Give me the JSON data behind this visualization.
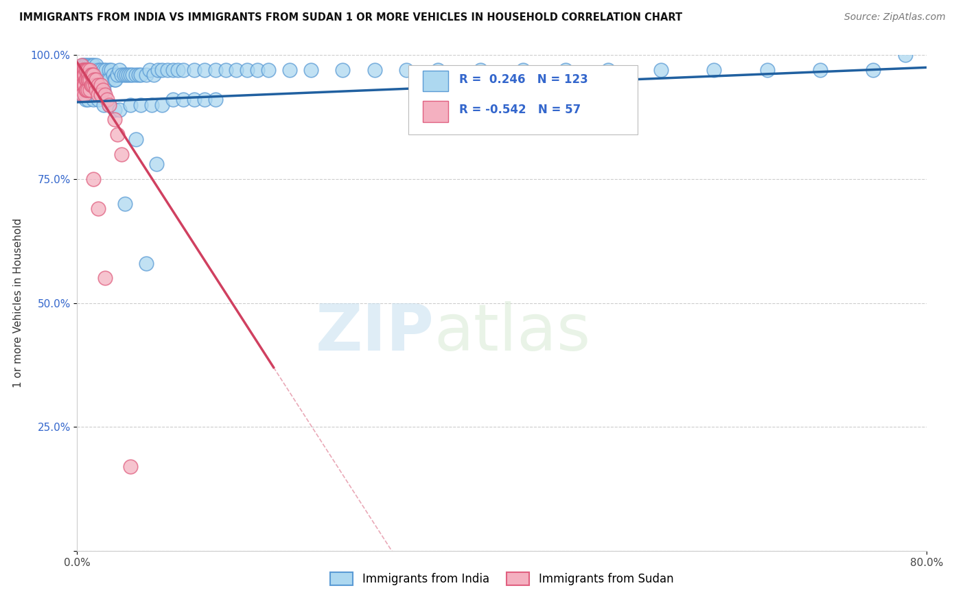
{
  "title": "IMMIGRANTS FROM INDIA VS IMMIGRANTS FROM SUDAN 1 OR MORE VEHICLES IN HOUSEHOLD CORRELATION CHART",
  "source": "Source: ZipAtlas.com",
  "ylabel": "1 or more Vehicles in Household",
  "xlim": [
    0.0,
    0.8
  ],
  "ylim": [
    0.0,
    1.0
  ],
  "india_color": "#add8f0",
  "india_edge_color": "#5b9bd5",
  "sudan_color": "#f4b0c0",
  "sudan_edge_color": "#e06080",
  "india_trend_color": "#2060a0",
  "sudan_trend_color": "#d04060",
  "india_R": 0.246,
  "india_N": 123,
  "sudan_R": -0.542,
  "sudan_N": 57,
  "legend_india": "Immigrants from India",
  "legend_sudan": "Immigrants from Sudan",
  "watermark_zip": "ZIP",
  "watermark_atlas": "atlas",
  "india_trend_x0": 0.0,
  "india_trend_x1": 0.8,
  "india_trend_y0": 0.905,
  "india_trend_y1": 0.975,
  "sudan_trend_solid_x0": 0.0,
  "sudan_trend_solid_x1": 0.185,
  "sudan_trend_y0": 0.985,
  "sudan_trend_y1": 0.37,
  "sudan_trend_dash_x0": 0.185,
  "sudan_trend_dash_x1": 0.8,
  "india_scatter_x": [
    0.003,
    0.004,
    0.004,
    0.004,
    0.005,
    0.005,
    0.005,
    0.005,
    0.006,
    0.006,
    0.006,
    0.007,
    0.007,
    0.007,
    0.007,
    0.008,
    0.008,
    0.008,
    0.008,
    0.009,
    0.009,
    0.009,
    0.01,
    0.01,
    0.01,
    0.01,
    0.01,
    0.012,
    0.012,
    0.012,
    0.012,
    0.013,
    0.013,
    0.014,
    0.014,
    0.015,
    0.015,
    0.015,
    0.016,
    0.016,
    0.018,
    0.018,
    0.018,
    0.02,
    0.02,
    0.02,
    0.022,
    0.022,
    0.022,
    0.025,
    0.025,
    0.025,
    0.027,
    0.028,
    0.03,
    0.03,
    0.032,
    0.034,
    0.035,
    0.036,
    0.038,
    0.04,
    0.042,
    0.044,
    0.046,
    0.048,
    0.05,
    0.052,
    0.055,
    0.058,
    0.06,
    0.065,
    0.068,
    0.072,
    0.076,
    0.08,
    0.085,
    0.09,
    0.095,
    0.1,
    0.11,
    0.12,
    0.13,
    0.14,
    0.15,
    0.16,
    0.17,
    0.18,
    0.2,
    0.22,
    0.25,
    0.28,
    0.31,
    0.34,
    0.38,
    0.42,
    0.46,
    0.5,
    0.55,
    0.6,
    0.65,
    0.7,
    0.75,
    0.78,
    0.015,
    0.02,
    0.025,
    0.03,
    0.035,
    0.04,
    0.05,
    0.06,
    0.07,
    0.08,
    0.09,
    0.1,
    0.11,
    0.12,
    0.13,
    0.045,
    0.055,
    0.065,
    0.075
  ],
  "india_scatter_y": [
    0.97,
    0.96,
    0.94,
    0.92,
    0.98,
    0.96,
    0.94,
    0.92,
    0.97,
    0.95,
    0.93,
    0.98,
    0.96,
    0.94,
    0.92,
    0.98,
    0.96,
    0.94,
    0.91,
    0.97,
    0.95,
    0.93,
    0.98,
    0.97,
    0.95,
    0.93,
    0.91,
    0.98,
    0.96,
    0.95,
    0.93,
    0.97,
    0.95,
    0.98,
    0.96,
    0.98,
    0.96,
    0.94,
    0.97,
    0.95,
    0.98,
    0.96,
    0.94,
    0.97,
    0.95,
    0.93,
    0.97,
    0.95,
    0.93,
    0.97,
    0.95,
    0.93,
    0.97,
    0.95,
    0.97,
    0.95,
    0.97,
    0.96,
    0.95,
    0.95,
    0.96,
    0.97,
    0.96,
    0.96,
    0.96,
    0.96,
    0.96,
    0.96,
    0.96,
    0.96,
    0.96,
    0.96,
    0.97,
    0.96,
    0.97,
    0.97,
    0.97,
    0.97,
    0.97,
    0.97,
    0.97,
    0.97,
    0.97,
    0.97,
    0.97,
    0.97,
    0.97,
    0.97,
    0.97,
    0.97,
    0.97,
    0.97,
    0.97,
    0.97,
    0.97,
    0.97,
    0.97,
    0.97,
    0.97,
    0.97,
    0.97,
    0.97,
    0.97,
    1.0,
    0.91,
    0.91,
    0.9,
    0.9,
    0.89,
    0.89,
    0.9,
    0.9,
    0.9,
    0.9,
    0.91,
    0.91,
    0.91,
    0.91,
    0.91,
    0.7,
    0.83,
    0.58,
    0.78
  ],
  "sudan_scatter_x": [
    0.003,
    0.003,
    0.003,
    0.004,
    0.004,
    0.004,
    0.004,
    0.005,
    0.005,
    0.005,
    0.005,
    0.006,
    0.006,
    0.006,
    0.007,
    0.007,
    0.007,
    0.007,
    0.008,
    0.008,
    0.008,
    0.009,
    0.009,
    0.009,
    0.01,
    0.01,
    0.01,
    0.011,
    0.011,
    0.012,
    0.012,
    0.012,
    0.013,
    0.013,
    0.014,
    0.014,
    0.015,
    0.015,
    0.016,
    0.017,
    0.018,
    0.018,
    0.02,
    0.02,
    0.022,
    0.022,
    0.024,
    0.026,
    0.028,
    0.03,
    0.035,
    0.038,
    0.042,
    0.015,
    0.02,
    0.026,
    0.05
  ],
  "sudan_scatter_y": [
    0.97,
    0.96,
    0.95,
    0.98,
    0.96,
    0.95,
    0.93,
    0.97,
    0.96,
    0.94,
    0.92,
    0.97,
    0.96,
    0.94,
    0.97,
    0.96,
    0.94,
    0.92,
    0.97,
    0.95,
    0.93,
    0.97,
    0.95,
    0.93,
    0.97,
    0.95,
    0.93,
    0.96,
    0.95,
    0.97,
    0.95,
    0.93,
    0.96,
    0.94,
    0.96,
    0.94,
    0.96,
    0.94,
    0.95,
    0.94,
    0.95,
    0.93,
    0.94,
    0.92,
    0.94,
    0.92,
    0.93,
    0.92,
    0.91,
    0.9,
    0.87,
    0.84,
    0.8,
    0.75,
    0.69,
    0.55,
    0.17
  ]
}
